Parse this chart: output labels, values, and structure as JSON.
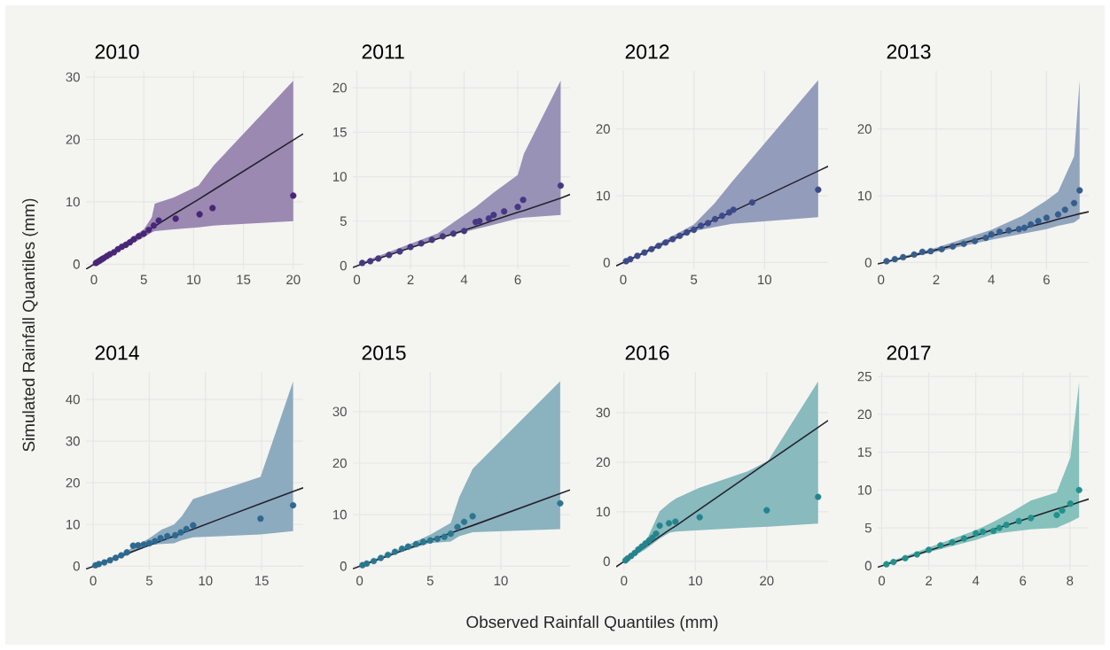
{
  "chart_data": [
    {
      "type": "scatter",
      "title": "2010",
      "ylabel": "Simulated Rainfall Quantiles (mm)",
      "xlim": [
        -0.8,
        21
      ],
      "ylim": [
        -0.8,
        31
      ],
      "xticks": [
        0,
        5,
        10,
        15,
        20
      ],
      "yticks": [
        0,
        10,
        20,
        30
      ],
      "grid": true,
      "series": [
        {
          "type": "line",
          "color": "#24222e",
          "x": [
            -0.8,
            0.2,
            3,
            5,
            5.8,
            6.1,
            8,
            10.5,
            12,
            20,
            21
          ],
          "values": [
            -0.8,
            0.2,
            3,
            5,
            5.8,
            6.1,
            8,
            10.4,
            11.9,
            19.9,
            20.9
          ],
          "upper": [
            null,
            0.3,
            3.4,
            5.6,
            7.5,
            9.7,
            10.7,
            12.6,
            15.8,
            29.4,
            null
          ],
          "lower": [
            null,
            0.1,
            2.6,
            4.3,
            5.1,
            5.3,
            5.6,
            5.9,
            6.2,
            6.9,
            null
          ]
        },
        {
          "marker": "circle",
          "color": "#482677",
          "x": [
            0.2,
            0.4,
            0.6,
            0.8,
            1,
            1.3,
            1.6,
            2,
            2.4,
            2.8,
            3.2,
            3.6,
            4,
            4.5,
            5,
            5.5,
            6,
            6.5,
            8.2,
            10.6,
            11.9,
            20
          ],
          "values": [
            0.2,
            0.4,
            0.6,
            0.8,
            1,
            1.3,
            1.6,
            1.9,
            2.4,
            2.8,
            3.1,
            3.5,
            4,
            4.5,
            4.9,
            5.5,
            6.2,
            7,
            7.3,
            8,
            9,
            11
          ]
        }
      ]
    },
    {
      "type": "scatter",
      "title": "2011",
      "xlim": [
        -0.15,
        7.95
      ],
      "ylim": [
        -0.4,
        21.9
      ],
      "xticks": [
        0,
        2,
        4,
        6
      ],
      "yticks": [
        0,
        5,
        10,
        15,
        20
      ],
      "grid": true,
      "series": [
        {
          "type": "line",
          "color": "#24222e",
          "x": [
            -0.15,
            0.2,
            3,
            4.43,
            5.1,
            6.0,
            6.23,
            7.6,
            7.95
          ],
          "values": [
            -0.2,
            0.2,
            3.0,
            4.4,
            5.1,
            6.0,
            6.2,
            7.6,
            8.0
          ],
          "upper": [
            null,
            0.4,
            3.6,
            6.6,
            8.2,
            10.2,
            12.6,
            20.8,
            null
          ],
          "lower": [
            null,
            0.1,
            3.0,
            4.1,
            4.6,
            5.3,
            5.4,
            5.7,
            null
          ]
        },
        {
          "marker": "circle",
          "color": "#453781",
          "x": [
            0.2,
            0.5,
            0.8,
            1.2,
            1.6,
            2,
            2.4,
            2.8,
            3.2,
            3.6,
            4,
            4.43,
            4.57,
            4.92,
            5.1,
            5.49,
            6,
            6.2,
            7.6
          ],
          "values": [
            0.3,
            0.5,
            0.8,
            1.2,
            1.6,
            2.1,
            2.5,
            2.9,
            3.3,
            3.6,
            3.9,
            4.9,
            5,
            5.3,
            5.7,
            6.1,
            6.6,
            7.4,
            9
          ]
        }
      ]
    },
    {
      "type": "scatter",
      "title": "2012",
      "xlim": [
        -0.5,
        14.5
      ],
      "ylim": [
        -1,
        28.7
      ],
      "xticks": [
        0,
        5,
        10
      ],
      "yticks": [
        0,
        10,
        20
      ],
      "grid": true,
      "series": [
        {
          "type": "line",
          "color": "#24222e",
          "x": [
            -0.5,
            0.2,
            3,
            5,
            6.44,
            7.7,
            13.8,
            14.5
          ],
          "values": [
            -0.5,
            0.2,
            3,
            5,
            6.4,
            7.6,
            13.7,
            14.4
          ],
          "upper": [
            null,
            0.3,
            3.4,
            5.7,
            8.8,
            12.1,
            27.3,
            null
          ],
          "lower": [
            null,
            0.1,
            2.7,
            4.7,
            5.3,
            5.8,
            6.8,
            null
          ]
        },
        {
          "marker": "circle",
          "color": "#3c4a8a",
          "x": [
            0.2,
            0.5,
            1,
            1.5,
            2,
            2.5,
            3,
            3.5,
            4,
            4.5,
            5,
            5.5,
            6,
            6.5,
            7,
            7.5,
            7.8,
            9.13,
            13.8
          ],
          "values": [
            0.2,
            0.5,
            1,
            1.5,
            2,
            2.5,
            3,
            3.5,
            4,
            4.5,
            4.9,
            5.5,
            5.9,
            6.5,
            7,
            7.5,
            7.9,
            9,
            10.9
          ]
        }
      ]
    },
    {
      "type": "scatter",
      "title": "2013",
      "xlim": [
        -0.12,
        7.53
      ],
      "ylim": [
        -1,
        28.7
      ],
      "xticks": [
        0,
        2,
        4,
        6
      ],
      "yticks": [
        0,
        10,
        20
      ],
      "grid": true,
      "series": [
        {
          "type": "line",
          "color": "#24222e",
          "x": [
            -0.12,
            0.2,
            2,
            4,
            5.12,
            6,
            6.42,
            7.0,
            7.2,
            7.53
          ],
          "values": [
            -0.2,
            0.1,
            1.9,
            4.0,
            5.1,
            6.0,
            6.5,
            7.1,
            7.3,
            7.6
          ],
          "upper": [
            null,
            0.3,
            2.2,
            4.9,
            7.0,
            9.3,
            10.6,
            15.9,
            27.3,
            null
          ],
          "lower": [
            null,
            0.1,
            1.6,
            3.4,
            4.3,
            5.0,
            5.5,
            6.0,
            6.6,
            null
          ]
        },
        {
          "marker": "circle",
          "color": "#355d8d",
          "x": [
            0.2,
            0.5,
            0.8,
            1.2,
            1.5,
            1.8,
            2.2,
            2.6,
            3,
            3.4,
            3.8,
            4,
            4.3,
            4.63,
            5,
            5.2,
            5.43,
            5.7,
            6,
            6.42,
            6.67,
            7,
            7.2
          ],
          "values": [
            0.2,
            0.5,
            0.8,
            1.2,
            1.6,
            1.7,
            2,
            2.4,
            2.8,
            3.2,
            3.7,
            4.2,
            4.6,
            4.8,
            5,
            5.2,
            5.7,
            6.2,
            6.7,
            7.2,
            7.9,
            8.9,
            10.8
          ]
        }
      ]
    },
    {
      "type": "scatter",
      "title": "2014",
      "xlim": [
        -0.64,
        18.7
      ],
      "ylim": [
        -1,
        46.6
      ],
      "xticks": [
        0,
        5,
        10,
        15
      ],
      "yticks": [
        0,
        10,
        20,
        30,
        40
      ],
      "grid": true,
      "series": [
        {
          "type": "line",
          "color": "#24222e",
          "x": [
            -0.64,
            0.2,
            3,
            5,
            6.1,
            7.2,
            7.9,
            8.9,
            14.9,
            17.8,
            18.7
          ],
          "values": [
            -0.7,
            0.1,
            3,
            5,
            6.1,
            7.2,
            7.9,
            8.9,
            15,
            17.9,
            18.8
          ],
          "upper": [
            null,
            0.4,
            3.7,
            6.7,
            8.8,
            10,
            12,
            16.1,
            21.4,
            44.3,
            null
          ],
          "lower": [
            null,
            0.1,
            2.6,
            5.1,
            5.3,
            5.5,
            6.2,
            6.9,
            7.6,
            8.4,
            null
          ]
        },
        {
          "marker": "circle",
          "color": "#2d6890",
          "x": [
            0.2,
            0.5,
            1,
            1.5,
            2,
            2.5,
            3,
            3.56,
            4,
            4.5,
            5,
            5.5,
            6,
            6.6,
            7.3,
            7.8,
            8.3,
            8.9,
            14.9,
            17.8
          ],
          "values": [
            0.2,
            0.5,
            0.9,
            1.4,
            2,
            2.6,
            3.3,
            4.9,
            5,
            5.2,
            5.5,
            6,
            6.7,
            7.2,
            7.4,
            8.1,
            8.9,
            9.8,
            11.4,
            14.6
          ]
        }
      ]
    },
    {
      "type": "scatter",
      "title": "2015",
      "xlabel": "Observed Rainfall Quantiles (mm)",
      "xlim": [
        -0.48,
        14.9
      ],
      "ylim": [
        -0.8,
        37.7
      ],
      "xticks": [
        0,
        5,
        10
      ],
      "yticks": [
        0,
        10,
        20,
        30
      ],
      "grid": true,
      "series": [
        {
          "type": "line",
          "color": "#24222e",
          "x": [
            -0.48,
            0.2,
            3,
            5,
            6.45,
            7.05,
            8,
            14.2,
            14.9
          ],
          "values": [
            -0.5,
            0.2,
            3,
            5,
            6.4,
            7,
            7.9,
            14.1,
            14.8
          ],
          "upper": [
            null,
            0.4,
            3.6,
            6.1,
            8.4,
            13.4,
            18.9,
            35.9,
            null
          ],
          "lower": [
            null,
            0.1,
            2.8,
            4.5,
            4.8,
            5.8,
            6.6,
            7.2,
            null
          ]
        },
        {
          "marker": "circle",
          "color": "#2a7690",
          "x": [
            0.2,
            0.5,
            1,
            1.5,
            2,
            2.5,
            3,
            3.43,
            4,
            4.5,
            5,
            5.5,
            6,
            6.45,
            6.93,
            7.4,
            8,
            14.2
          ],
          "values": [
            0.2,
            0.5,
            1,
            1.6,
            2.2,
            2.8,
            3.4,
            3.8,
            4.3,
            4.7,
            5,
            5.3,
            5.7,
            6.3,
            7.6,
            8.6,
            9.7,
            12.2
          ]
        }
      ]
    },
    {
      "type": "scatter",
      "title": "2016",
      "xlim": [
        -1.1,
        28.6
      ],
      "ylim": [
        -1.8,
        38.2
      ],
      "xticks": [
        0,
        10,
        20
      ],
      "yticks": [
        0,
        10,
        20,
        30
      ],
      "grid": true,
      "series": [
        {
          "type": "line",
          "color": "#24222e",
          "x": [
            -1.1,
            0.2,
            3,
            5,
            6.4,
            7.3,
            10.5,
            17.4,
            20.2,
            27.2,
            28.6
          ],
          "values": [
            -1.1,
            0.2,
            3,
            5,
            6.4,
            7.2,
            10.4,
            17.3,
            20.1,
            27.0,
            28.4
          ],
          "upper": [
            null,
            0.4,
            3.8,
            10.1,
            11.8,
            12.7,
            14.8,
            18.2,
            20.3,
            36.3,
            null
          ],
          "lower": [
            null,
            0.1,
            2.4,
            4.6,
            5.8,
            6.0,
            6.3,
            6.8,
            7.0,
            7.6,
            null
          ]
        },
        {
          "marker": "circle",
          "color": "#24848e",
          "x": [
            0.2,
            0.5,
            1,
            1.5,
            2,
            2.5,
            3,
            3.5,
            4,
            4.5,
            5,
            6.3,
            7.2,
            10.6,
            20,
            27.2
          ],
          "values": [
            0.2,
            0.6,
            1.1,
            1.7,
            2.4,
            3,
            3.6,
            4.2,
            4.8,
            5.6,
            7.2,
            7.7,
            8,
            8.9,
            10.3,
            13
          ]
        }
      ]
    },
    {
      "type": "scatter",
      "title": "2017",
      "xlim": [
        -0.17,
        8.8
      ],
      "ylim": [
        -0.6,
        25.6
      ],
      "xticks": [
        0,
        2,
        4,
        6,
        8
      ],
      "yticks": [
        0,
        5,
        10,
        15,
        20,
        25
      ],
      "grid": true,
      "series": [
        {
          "type": "line",
          "color": "#24222e",
          "x": [
            -0.17,
            0.2,
            2,
            4,
            4.75,
            5.47,
            6.34,
            7.44,
            8.02,
            8.39,
            8.8
          ],
          "values": [
            -0.2,
            0.2,
            2,
            4,
            4.8,
            5.5,
            6.4,
            7.5,
            8.0,
            8.4,
            8.8
          ],
          "upper": [
            null,
            0.4,
            2.4,
            4.7,
            5.8,
            7.0,
            8.6,
            9.7,
            14.3,
            24.2,
            null
          ],
          "lower": [
            null,
            0.1,
            1.8,
            3.4,
            4.2,
            4.5,
            4.8,
            5.0,
            5.8,
            6.4,
            null
          ]
        },
        {
          "marker": "circle",
          "color": "#21918c",
          "x": [
            0.2,
            0.5,
            1,
            1.5,
            2,
            2.5,
            3,
            3.5,
            4,
            4.3,
            4.75,
            5,
            5.3,
            5.83,
            6.34,
            7.44,
            7.67,
            8.02,
            8.39
          ],
          "values": [
            0.2,
            0.5,
            1,
            1.5,
            2.1,
            2.7,
            3.1,
            3.6,
            4.3,
            4.5,
            4.6,
            5.0,
            5.4,
            5.9,
            6.3,
            6.7,
            7.3,
            8.2,
            10
          ]
        }
      ]
    }
  ]
}
